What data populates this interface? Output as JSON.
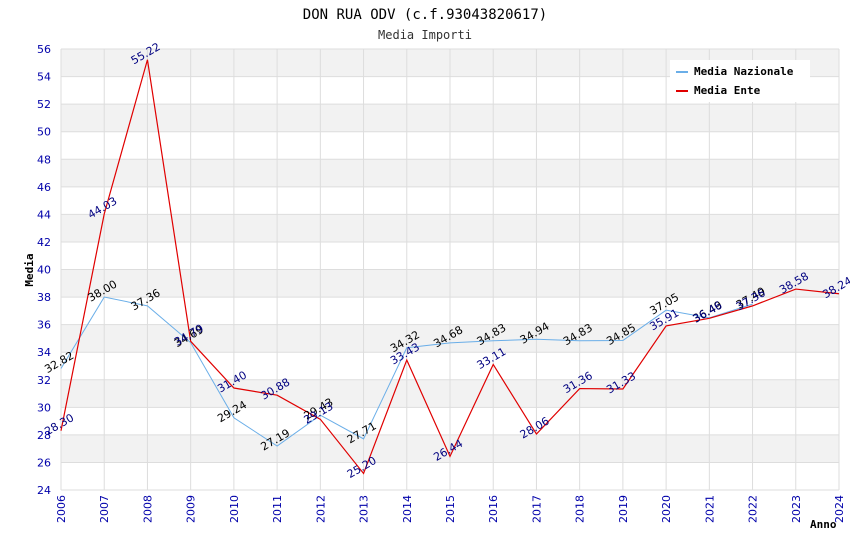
{
  "chart_data": {
    "type": "line",
    "title": "DON RUA ODV (c.f.93043820617)",
    "subtitle": "Media Importi",
    "xlabel": "Anno",
    "ylabel": "Media",
    "ylim": [
      24,
      56
    ],
    "yticks": [
      "24",
      "26",
      "28",
      "30",
      "32",
      "34",
      "36",
      "38",
      "40",
      "42",
      "44",
      "46",
      "48",
      "50",
      "52",
      "54",
      "56"
    ],
    "categories": [
      "2006",
      "2007",
      "2008",
      "2009",
      "2010",
      "2011",
      "2012",
      "2013",
      "2014",
      "2015",
      "2016",
      "2017",
      "2018",
      "2019",
      "2020",
      "2021",
      "2022",
      "2023",
      "2024"
    ],
    "series": [
      {
        "name": "Media Nazionale",
        "color": "#6aaee8",
        "values": [
          32.82,
          38.0,
          37.36,
          34.69,
          29.24,
          27.19,
          29.43,
          27.71,
          34.32,
          34.68,
          34.83,
          34.94,
          34.83,
          34.85,
          37.05,
          36.49,
          37.49,
          null,
          null
        ],
        "labels": [
          "32.82",
          "38.00",
          "37.36",
          "34.69",
          "29.24",
          "27.19",
          "29.43",
          "27.71",
          "34.32",
          "34.68",
          "34.83",
          "34.94",
          "34.83",
          "34.85",
          "37.05",
          "36.49",
          "37.49",
          "",
          ""
        ]
      },
      {
        "name": "Media Ente",
        "color": "#e00000",
        "values": [
          28.3,
          44.03,
          55.22,
          34.79,
          31.4,
          30.88,
          29.13,
          25.2,
          33.43,
          26.44,
          33.11,
          28.06,
          31.36,
          31.33,
          35.91,
          36.46,
          37.36,
          38.58,
          38.24
        ],
        "labels": [
          "28.30",
          "44.03",
          "55.22",
          "34.79",
          "31.40",
          "30.88",
          "29.13",
          "25.20",
          "33.43",
          "26.44",
          "33.11",
          "28.06",
          "31.36",
          "31.33",
          "35.91",
          "36.46",
          "37.36",
          "38.58",
          "38.24"
        ]
      }
    ],
    "legend_position": "top-right",
    "grid": true
  }
}
